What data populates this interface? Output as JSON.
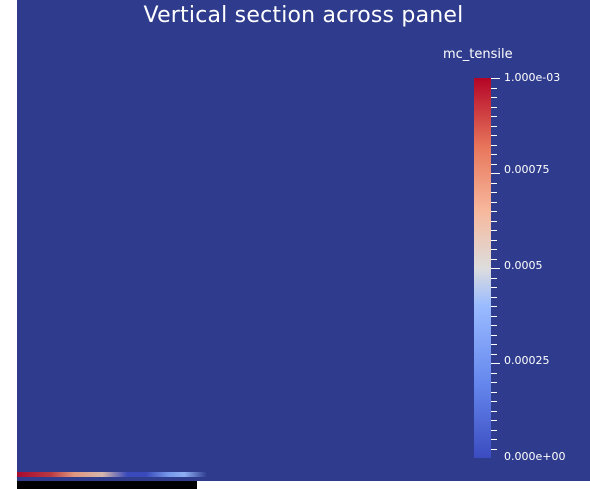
{
  "view": {
    "title": "Vertical section across panel",
    "background_color": "#2f3c8d"
  },
  "legend": {
    "title": "mc_tensile",
    "colormap": "cool-to-warm",
    "range": [
      0,
      0.001
    ],
    "labels": {
      "max": "1.000e-03",
      "v075": "0.00075",
      "v050": "0.0005",
      "v025": "0.00025",
      "min": "0.000e+00"
    },
    "colors": {
      "low": "#3b4cc0",
      "mid": "#dddddd",
      "high": "#b40426"
    }
  }
}
